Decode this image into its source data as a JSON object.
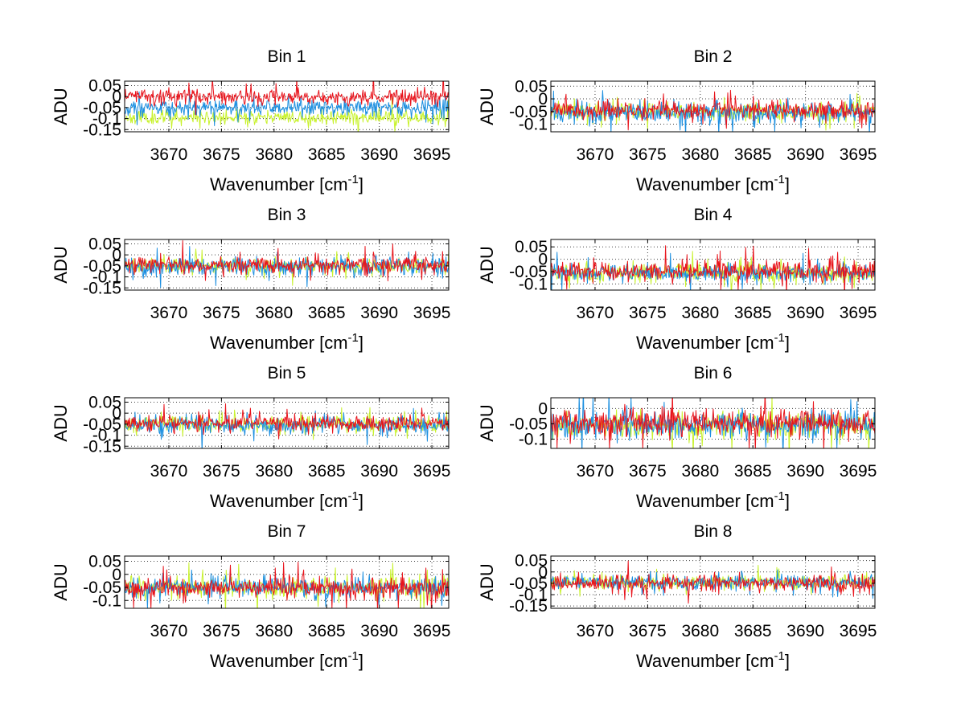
{
  "chart_data": [
    {
      "type": "line",
      "title": "Bin 1",
      "xlabel": "Wavenumber [cm",
      "xlabel_sup": "-1",
      "xlabel_tail": "]",
      "ylabel": "ADU",
      "xlim": [
        3665.8,
        3696.6
      ],
      "ylim": [
        -0.16,
        0.07
      ],
      "xticks": [
        3670,
        3675,
        3680,
        3685,
        3690,
        3695
      ],
      "yticks": [
        -0.15,
        -0.1,
        -0.05,
        0,
        0.05
      ],
      "ytick_labels": [
        "-0.15",
        "-0.1",
        "-0.05",
        "0",
        "0.05"
      ],
      "series": [
        {
          "name": "green",
          "color": "#c8f22c",
          "mean": -0.095,
          "noise": 0.022,
          "seed": 11
        },
        {
          "name": "blue",
          "color": "#1c8fe0",
          "mean": -0.05,
          "noise": 0.025,
          "seed": 12
        },
        {
          "name": "red",
          "color": "#e8141c",
          "mean": 0.0,
          "noise": 0.025,
          "seed": 13
        }
      ]
    },
    {
      "type": "line",
      "title": "Bin 2",
      "xlabel": "Wavenumber [cm",
      "xlabel_sup": "-1",
      "xlabel_tail": "]",
      "ylabel": "ADU",
      "xlim": [
        3665.8,
        3696.6
      ],
      "ylim": [
        -0.13,
        0.07
      ],
      "xticks": [
        3670,
        3675,
        3680,
        3685,
        3690,
        3695
      ],
      "yticks": [
        -0.1,
        -0.05,
        0,
        0.05
      ],
      "ytick_labels": [
        "-0.1",
        "-0.05",
        "0",
        "0.05"
      ],
      "series": [
        {
          "name": "green",
          "color": "#c8f22c",
          "mean": -0.05,
          "noise": 0.025,
          "seed": 21
        },
        {
          "name": "blue",
          "color": "#1c8fe0",
          "mean": -0.055,
          "noise": 0.028,
          "seed": 22
        },
        {
          "name": "red",
          "color": "#e8141c",
          "mean": -0.045,
          "noise": 0.026,
          "seed": 23
        }
      ]
    },
    {
      "type": "line",
      "title": "Bin 3",
      "xlabel": "Wavenumber [cm",
      "xlabel_sup": "-1",
      "xlabel_tail": "]",
      "ylabel": "ADU",
      "xlim": [
        3665.8,
        3696.6
      ],
      "ylim": [
        -0.16,
        0.07
      ],
      "xticks": [
        3670,
        3675,
        3680,
        3685,
        3690,
        3695
      ],
      "yticks": [
        -0.15,
        -0.1,
        -0.05,
        0,
        0.05
      ],
      "ytick_labels": [
        "-0.15",
        "-0.1",
        "-0.05",
        "0",
        "0.05"
      ],
      "series": [
        {
          "name": "green",
          "color": "#c8f22c",
          "mean": -0.05,
          "noise": 0.025,
          "seed": 31
        },
        {
          "name": "blue",
          "color": "#1c8fe0",
          "mean": -0.055,
          "noise": 0.03,
          "seed": 32
        },
        {
          "name": "red",
          "color": "#e8141c",
          "mean": -0.045,
          "noise": 0.026,
          "seed": 33
        }
      ]
    },
    {
      "type": "line",
      "title": "Bin 4",
      "xlabel": "Wavenumber [cm",
      "xlabel_sup": "-1",
      "xlabel_tail": "]",
      "ylabel": "ADU",
      "xlim": [
        3665.8,
        3696.6
      ],
      "ylim": [
        -0.125,
        0.08
      ],
      "xticks": [
        3670,
        3675,
        3680,
        3685,
        3690,
        3695
      ],
      "yticks": [
        -0.1,
        -0.05,
        0,
        0.05
      ],
      "ytick_labels": [
        "-0.1",
        "-0.05",
        "0",
        "0.05"
      ],
      "series": [
        {
          "name": "green",
          "color": "#c8f22c",
          "mean": -0.055,
          "noise": 0.028,
          "seed": 41
        },
        {
          "name": "blue",
          "color": "#1c8fe0",
          "mean": -0.055,
          "noise": 0.026,
          "seed": 42
        },
        {
          "name": "red",
          "color": "#e8141c",
          "mean": -0.05,
          "noise": 0.03,
          "seed": 43
        }
      ]
    },
    {
      "type": "line",
      "title": "Bin 5",
      "xlabel": "Wavenumber [cm",
      "xlabel_sup": "-1",
      "xlabel_tail": "]",
      "ylabel": "ADU",
      "xlim": [
        3665.8,
        3696.6
      ],
      "ylim": [
        -0.16,
        0.07
      ],
      "xticks": [
        3670,
        3675,
        3680,
        3685,
        3690,
        3695
      ],
      "yticks": [
        -0.15,
        -0.1,
        -0.05,
        0,
        0.05
      ],
      "ytick_labels": [
        "-0.15",
        "-0.1",
        "-0.05",
        "0",
        "0.05"
      ],
      "series": [
        {
          "name": "green",
          "color": "#c8f22c",
          "mean": -0.05,
          "noise": 0.025,
          "seed": 51
        },
        {
          "name": "blue",
          "color": "#1c8fe0",
          "mean": -0.055,
          "noise": 0.026,
          "seed": 52
        },
        {
          "name": "red",
          "color": "#e8141c",
          "mean": -0.045,
          "noise": 0.026,
          "seed": 53
        }
      ]
    },
    {
      "type": "line",
      "title": "Bin 6",
      "xlabel": "Wavenumber [cm",
      "xlabel_sup": "-1",
      "xlabel_tail": "]",
      "ylabel": "ADU",
      "xlim": [
        3665.8,
        3696.6
      ],
      "ylim": [
        -0.13,
        0.035
      ],
      "xticks": [
        3670,
        3675,
        3680,
        3685,
        3690,
        3695
      ],
      "yticks": [
        -0.1,
        -0.05,
        0
      ],
      "ytick_labels": [
        "-0.1",
        "-0.05",
        "0"
      ],
      "series": [
        {
          "name": "green",
          "color": "#c8f22c",
          "mean": -0.055,
          "noise": 0.03,
          "seed": 61
        },
        {
          "name": "blue",
          "color": "#1c8fe0",
          "mean": -0.055,
          "noise": 0.03,
          "seed": 62
        },
        {
          "name": "red",
          "color": "#e8141c",
          "mean": -0.045,
          "noise": 0.032,
          "seed": 63
        }
      ]
    },
    {
      "type": "line",
      "title": "Bin 7",
      "xlabel": "Wavenumber [cm",
      "xlabel_sup": "-1",
      "xlabel_tail": "]",
      "ylabel": "ADU",
      "xlim": [
        3665.8,
        3696.6
      ],
      "ylim": [
        -0.13,
        0.07
      ],
      "xticks": [
        3670,
        3675,
        3680,
        3685,
        3690,
        3695
      ],
      "yticks": [
        -0.1,
        -0.05,
        0,
        0.05
      ],
      "ytick_labels": [
        "-0.1",
        "-0.05",
        "0",
        "0.05"
      ],
      "series": [
        {
          "name": "green",
          "color": "#c8f22c",
          "mean": -0.05,
          "noise": 0.028,
          "seed": 71
        },
        {
          "name": "blue",
          "color": "#1c8fe0",
          "mean": -0.05,
          "noise": 0.026,
          "seed": 72
        },
        {
          "name": "red",
          "color": "#e8141c",
          "mean": -0.05,
          "noise": 0.028,
          "seed": 73
        }
      ]
    },
    {
      "type": "line",
      "title": "Bin 8",
      "xlabel": "Wavenumber [cm",
      "xlabel_sup": "-1",
      "xlabel_tail": "]",
      "ylabel": "ADU",
      "xlim": [
        3665.8,
        3696.6
      ],
      "ylim": [
        -0.16,
        0.07
      ],
      "xticks": [
        3670,
        3675,
        3680,
        3685,
        3690,
        3695
      ],
      "yticks": [
        -0.15,
        -0.1,
        -0.05,
        0,
        0.05
      ],
      "ytick_labels": [
        "-0.15",
        "-0.1",
        "-0.05",
        "0",
        "0.05"
      ],
      "series": [
        {
          "name": "green",
          "color": "#c8f22c",
          "mean": -0.045,
          "noise": 0.024,
          "seed": 81
        },
        {
          "name": "blue",
          "color": "#1c8fe0",
          "mean": -0.045,
          "noise": 0.022,
          "seed": 82
        },
        {
          "name": "red",
          "color": "#e8141c",
          "mean": -0.05,
          "noise": 0.026,
          "seed": 83
        }
      ]
    }
  ]
}
